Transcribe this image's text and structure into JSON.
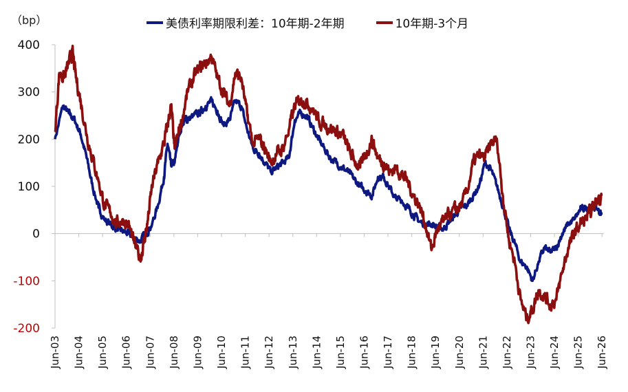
{
  "unit_label": "（bp）",
  "colors": {
    "spread_10y_2y": "#0d1880",
    "spread_10y_3m": "#8b0f0f",
    "negative_tick": "#c00000",
    "axis": "#bfbfbf"
  },
  "chart_data": {
    "type": "line",
    "title": "",
    "xlabel": "",
    "ylabel": "（bp）",
    "ylim": [
      -200,
      400
    ],
    "yticks": [
      400,
      300,
      200,
      100,
      0,
      -100,
      -200
    ],
    "ytick_labels": [
      "400",
      "300",
      "200",
      "100",
      "0",
      "-100",
      "-200"
    ],
    "xlim": [
      2003.42,
      2026.5
    ],
    "xticks": [
      2003.42,
      2004.42,
      2005.42,
      2006.42,
      2007.42,
      2008.42,
      2009.42,
      2010.42,
      2011.42,
      2012.42,
      2013.42,
      2014.42,
      2015.42,
      2016.42,
      2017.42,
      2018.42,
      2019.42,
      2020.42,
      2021.42,
      2022.42,
      2023.42,
      2024.42,
      2025.42,
      2026.42
    ],
    "xtick_labels": [
      "Jun-03",
      "Jun-04",
      "Jun-05",
      "Jun-06",
      "Jun-07",
      "Jun-08",
      "Jun-09",
      "Jun-10",
      "Jun-11",
      "Jun-12",
      "Jun-13",
      "Jun-14",
      "Jun-15",
      "Jun-16",
      "Jun-17",
      "Jun-18",
      "Jun-19",
      "Jun-20",
      "Jun-21",
      "Jun-22",
      "Jun-23",
      "Jun-24",
      "Jun-25",
      "Jun-26"
    ],
    "legend_position": "top",
    "grid": false,
    "series": [
      {
        "name": "美债利率期限利差：10年期-2年期",
        "color": "#0d1880",
        "x": [
          2003.42,
          2003.75,
          2004.0,
          2004.25,
          2004.5,
          2004.75,
          2005.0,
          2005.25,
          2005.5,
          2005.75,
          2006.0,
          2006.25,
          2006.5,
          2006.75,
          2007.0,
          2007.25,
          2007.5,
          2007.75,
          2008.0,
          2008.15,
          2008.3,
          2008.45,
          2008.6,
          2008.75,
          2008.9,
          2009.0,
          2009.25,
          2009.5,
          2009.75,
          2010.0,
          2010.25,
          2010.5,
          2010.75,
          2011.0,
          2011.25,
          2011.5,
          2011.75,
          2012.0,
          2012.25,
          2012.5,
          2012.75,
          2013.0,
          2013.25,
          2013.5,
          2013.75,
          2014.0,
          2014.25,
          2014.5,
          2014.75,
          2015.0,
          2015.25,
          2015.5,
          2015.75,
          2016.0,
          2016.25,
          2016.5,
          2016.75,
          2017.0,
          2017.25,
          2017.5,
          2017.75,
          2018.0,
          2018.25,
          2018.5,
          2018.75,
          2019.0,
          2019.25,
          2019.5,
          2019.75,
          2020.0,
          2020.25,
          2020.5,
          2020.75,
          2021.0,
          2021.25,
          2021.5,
          2021.75,
          2022.0,
          2022.25,
          2022.5,
          2022.75,
          2023.0,
          2023.25,
          2023.5,
          2023.75,
          2024.0,
          2024.25,
          2024.5,
          2024.75,
          2025.0,
          2025.25,
          2025.5,
          2025.75,
          2026.0,
          2026.25,
          2026.4
        ],
        "y": [
          200,
          270,
          255,
          240,
          210,
          160,
          100,
          55,
          30,
          20,
          10,
          5,
          0,
          -10,
          -15,
          0,
          20,
          60,
          120,
          190,
          145,
          150,
          200,
          230,
          245,
          240,
          250,
          255,
          270,
          280,
          260,
          230,
          240,
          280,
          270,
          220,
          180,
          170,
          150,
          130,
          140,
          150,
          160,
          240,
          255,
          250,
          225,
          200,
          180,
          160,
          150,
          140,
          130,
          115,
          100,
          90,
          80,
          120,
          120,
          95,
          75,
          70,
          55,
          40,
          25,
          20,
          20,
          15,
          10,
          25,
          40,
          55,
          60,
          80,
          100,
          150,
          135,
          100,
          60,
          10,
          -20,
          -60,
          -70,
          -100,
          -60,
          -30,
          -40,
          -30,
          0,
          20,
          30,
          50,
          55,
          60,
          50,
          40
        ]
      },
      {
        "name": "10年期-3个月",
        "color": "#8b0f0f",
        "x": [
          2003.42,
          2003.6,
          2003.8,
          2004.0,
          2004.15,
          2004.3,
          2004.5,
          2004.75,
          2005.0,
          2005.25,
          2005.5,
          2005.75,
          2006.0,
          2006.25,
          2006.5,
          2006.75,
          2007.0,
          2007.15,
          2007.3,
          2007.5,
          2007.75,
          2008.0,
          2008.15,
          2008.3,
          2008.45,
          2008.6,
          2008.75,
          2009.0,
          2009.25,
          2009.5,
          2009.75,
          2010.0,
          2010.25,
          2010.5,
          2010.75,
          2011.0,
          2011.25,
          2011.5,
          2011.75,
          2012.0,
          2012.25,
          2012.5,
          2012.75,
          2013.0,
          2013.25,
          2013.5,
          2013.75,
          2014.0,
          2014.25,
          2014.5,
          2014.75,
          2015.0,
          2015.25,
          2015.5,
          2015.75,
          2016.0,
          2016.25,
          2016.5,
          2016.75,
          2017.0,
          2017.25,
          2017.5,
          2017.75,
          2018.0,
          2018.25,
          2018.5,
          2018.75,
          2019.0,
          2019.25,
          2019.5,
          2019.75,
          2020.0,
          2020.25,
          2020.5,
          2020.75,
          2021.0,
          2021.25,
          2021.5,
          2021.75,
          2022.0,
          2022.25,
          2022.5,
          2022.75,
          2023.0,
          2023.25,
          2023.5,
          2023.75,
          2024.0,
          2024.25,
          2024.5,
          2024.75,
          2025.0,
          2025.25,
          2025.5,
          2025.75,
          2026.0,
          2026.25,
          2026.4
        ],
        "y": [
          215,
          340,
          330,
          360,
          385,
          330,
          280,
          210,
          160,
          110,
          60,
          45,
          20,
          30,
          20,
          -20,
          -55,
          -20,
          20,
          100,
          150,
          190,
          230,
          270,
          180,
          210,
          240,
          300,
          330,
          350,
          360,
          375,
          330,
          300,
          270,
          340,
          330,
          250,
          190,
          200,
          180,
          150,
          170,
          180,
          220,
          270,
          285,
          280,
          265,
          240,
          230,
          225,
          215,
          210,
          180,
          155,
          140,
          170,
          200,
          160,
          150,
          130,
          140,
          125,
          110,
          80,
          60,
          20,
          -35,
          10,
          25,
          40,
          50,
          60,
          90,
          150,
          165,
          160,
          190,
          200,
          80,
          -10,
          -60,
          -140,
          -180,
          -160,
          -120,
          -130,
          -150,
          -140,
          -80,
          -30,
          0,
          20,
          30,
          50,
          75,
          80
        ]
      }
    ]
  }
}
